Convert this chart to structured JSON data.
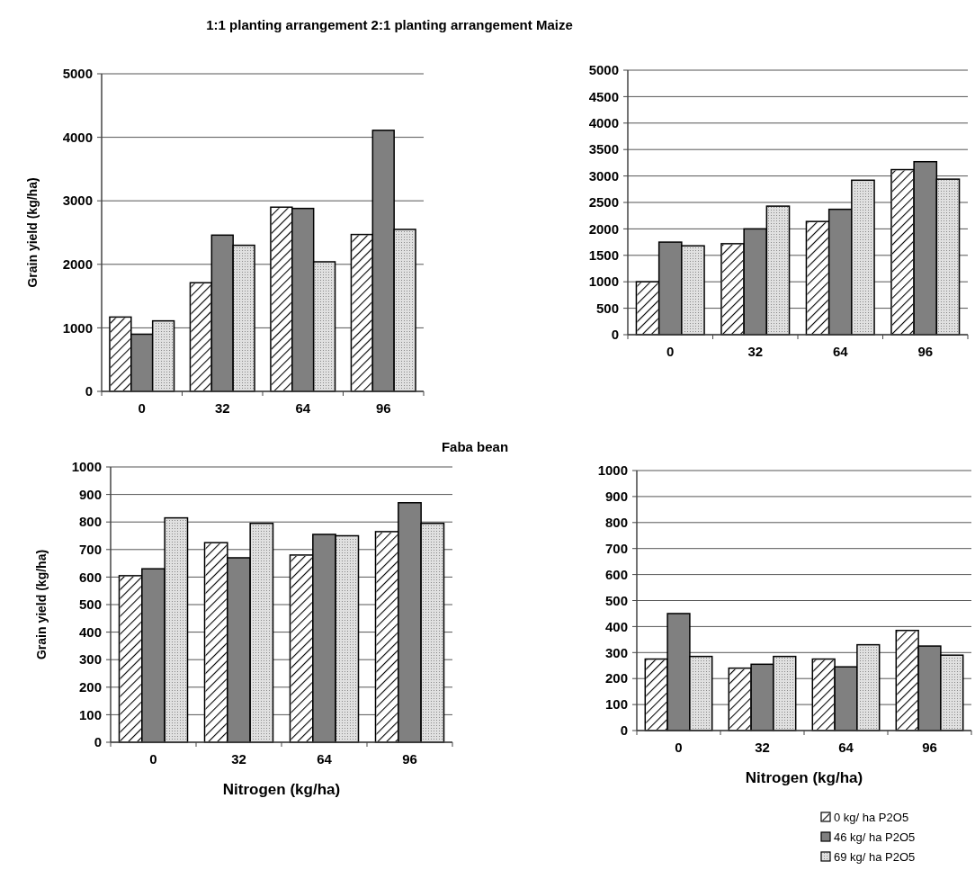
{
  "chart_data": [
    {
      "type": "bar",
      "title": "1:1 planting arrangement 2:1 planting arrangement Maize",
      "ylabel": "Grain yield (kg/ha)",
      "categories": [
        "0",
        "32",
        "64",
        "96"
      ],
      "series": [
        {
          "color": "#ffffff",
          "values": [
            1170,
            1710,
            2900,
            2470
          ]
        },
        {
          "color": "#808080",
          "values": [
            900,
            2460,
            2880,
            4110
          ]
        },
        {
          "color": "#e0e0e0",
          "values": [
            1110,
            2300,
            2040,
            2550
          ]
        }
      ],
      "ylim": [
        0,
        5000
      ],
      "yticks": [
        0,
        1000,
        2000,
        3000,
        4000,
        5000
      ],
      "grid": "y"
    },
    {
      "type": "bar",
      "categories": [
        "0",
        "32",
        "64",
        "96"
      ],
      "series": [
        {
          "color": "#ffffff",
          "values": [
            1000,
            1720,
            2140,
            3120
          ]
        },
        {
          "color": "#808080",
          "values": [
            1750,
            2000,
            2370,
            3270
          ]
        },
        {
          "color": "#e0e0e0",
          "values": [
            1680,
            2430,
            2920,
            2940
          ]
        }
      ],
      "ylim": [
        0,
        5000
      ],
      "yticks": [
        0,
        500,
        1000,
        1500,
        2000,
        2500,
        3000,
        3500,
        4000,
        4500,
        5000
      ],
      "grid": "y"
    },
    {
      "type": "bar",
      "title": "Faba bean",
      "xlabel": "Nitrogen (kg/ha)",
      "ylabel": "Grain yield (kg/ha)",
      "categories": [
        "0",
        "32",
        "64",
        "96"
      ],
      "series": [
        {
          "color": "#ffffff",
          "values": [
            605,
            725,
            680,
            765
          ]
        },
        {
          "color": "#808080",
          "values": [
            630,
            670,
            755,
            870
          ]
        },
        {
          "color": "#e0e0e0",
          "values": [
            815,
            795,
            750,
            795
          ]
        }
      ],
      "ylim": [
        0,
        1000
      ],
      "yticks": [
        0,
        100,
        200,
        300,
        400,
        500,
        600,
        700,
        800,
        900,
        1000
      ],
      "grid": "y"
    },
    {
      "type": "bar",
      "xlabel": "Nitrogen (kg/ha)",
      "categories": [
        "0",
        "32",
        "64",
        "96"
      ],
      "series": [
        {
          "name": "0 kg/ ha P2O5",
          "color": "#ffffff",
          "values": [
            275,
            240,
            275,
            385
          ]
        },
        {
          "name": "46 kg/ ha P2O5",
          "color": "#808080",
          "values": [
            450,
            255,
            245,
            325
          ]
        },
        {
          "name": "69 kg/ ha P2O5",
          "color": "#e0e0e0",
          "values": [
            285,
            285,
            330,
            290
          ]
        }
      ],
      "ylim": [
        0,
        1000
      ],
      "yticks": [
        0,
        100,
        200,
        300,
        400,
        500,
        600,
        700,
        800,
        900,
        1000
      ],
      "grid": "y",
      "legend": "bottom right"
    }
  ]
}
